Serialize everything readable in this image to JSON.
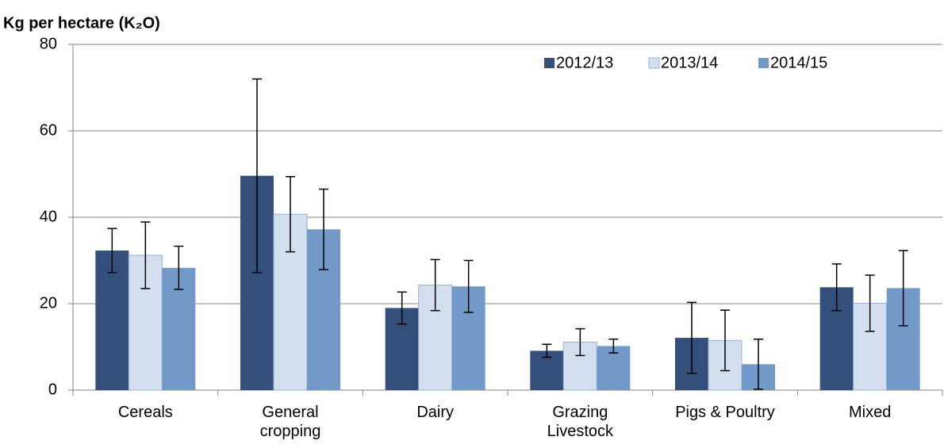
{
  "chart_data": {
    "type": "bar",
    "y_label": "Kg per hectare (K₂O)",
    "categories": [
      "Cereals",
      "General\ncropping",
      "Dairy",
      "Grazing\nLivestock",
      "Pigs & Poultry",
      "Mixed"
    ],
    "series": [
      {
        "name": "2012/13",
        "color": "#34507A",
        "values": [
          32.3,
          49.6,
          19.0,
          9.1,
          12.1,
          23.8
        ],
        "errors": [
          5.1,
          22.4,
          3.7,
          1.5,
          8.2,
          5.4
        ]
      },
      {
        "name": "2013/14",
        "color": "#D3DEEE",
        "values": [
          31.2,
          40.7,
          24.3,
          11.1,
          11.5,
          20.1
        ],
        "errors": [
          7.7,
          8.7,
          5.9,
          3.1,
          7.0,
          6.5
        ]
      },
      {
        "name": "2014/15",
        "color": "#7399C9",
        "values": [
          28.3,
          37.2,
          24.0,
          10.2,
          6.0,
          23.6
        ],
        "errors": [
          5.0,
          9.3,
          6.0,
          1.6,
          5.8,
          8.7
        ]
      }
    ],
    "ylim": [
      0,
      80
    ],
    "yticks": [
      0,
      20,
      40,
      60,
      80
    ],
    "grid": true,
    "legend": "top-right"
  }
}
